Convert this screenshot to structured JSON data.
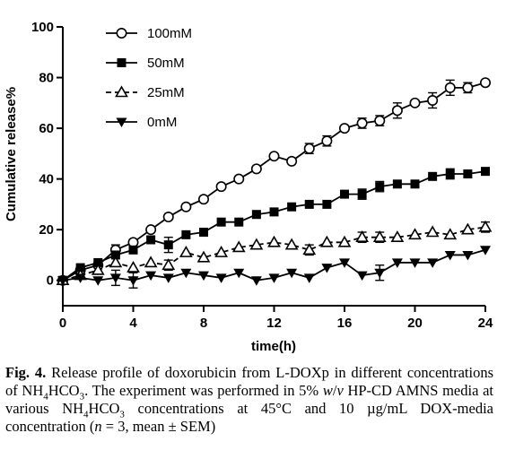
{
  "chart_data": {
    "type": "line",
    "xlabel": "time(h)",
    "ylabel": "Cumulative release%",
    "xlim": [
      0,
      24
    ],
    "ylim": [
      -10,
      100
    ],
    "xticks": [
      0,
      4,
      8,
      12,
      16,
      20,
      24
    ],
    "xtick_labels": [
      "0",
      "4",
      "8",
      "12",
      "16",
      "20",
      "24"
    ],
    "yticks": [
      0,
      20,
      40,
      60,
      80,
      100
    ],
    "ytick_labels": [
      "0",
      "20",
      "40",
      "60",
      "80",
      "100"
    ],
    "grid": false,
    "legend_position": "top-left",
    "x": [
      0,
      1,
      2,
      3,
      4,
      5,
      6,
      7,
      8,
      9,
      10,
      11,
      12,
      13,
      14,
      15,
      16,
      17,
      18,
      19,
      20,
      21,
      22,
      23,
      24
    ],
    "series": [
      {
        "name": "100mM",
        "marker": "open-circle",
        "line": "solid",
        "values": [
          0,
          4,
          6,
          12,
          15,
          20,
          25,
          29,
          32,
          37,
          40,
          44,
          49,
          47,
          52,
          55,
          60,
          62,
          63,
          67,
          70,
          71,
          76,
          76,
          78
        ],
        "error": [
          0,
          0,
          0,
          2,
          0,
          0,
          0,
          0,
          0,
          0,
          0,
          0,
          0,
          0,
          2,
          2,
          0,
          2,
          2,
          3,
          0,
          3,
          3,
          2,
          0
        ]
      },
      {
        "name": "50mM",
        "marker": "filled-square",
        "line": "solid",
        "values": [
          0,
          5,
          7,
          10,
          12,
          16,
          14,
          18,
          19,
          23,
          23,
          26,
          27,
          29,
          30,
          30,
          34,
          34,
          37,
          38,
          38,
          41,
          42,
          42,
          43
        ],
        "error": [
          0,
          0,
          0,
          0,
          0,
          0,
          3,
          0,
          0,
          0,
          0,
          0,
          0,
          0,
          0,
          0,
          0,
          2,
          2,
          0,
          0,
          0,
          2,
          0,
          0
        ]
      },
      {
        "name": "25mM",
        "marker": "open-triangle",
        "line": "dashed",
        "values": [
          0,
          2,
          4,
          7,
          5,
          7,
          6,
          11,
          9,
          11,
          13,
          14,
          15,
          14,
          12,
          15,
          15,
          17,
          17,
          17,
          18,
          19,
          18,
          20,
          21
        ],
        "error": [
          0,
          0,
          0,
          0,
          0,
          0,
          2,
          0,
          0,
          0,
          0,
          0,
          0,
          0,
          2,
          0,
          0,
          2,
          2,
          0,
          0,
          0,
          0,
          0,
          2
        ]
      },
      {
        "name": "0mM",
        "marker": "filled-inverted-triangle",
        "line": "solid",
        "values": [
          0,
          1,
          0,
          1,
          0,
          2,
          1,
          3,
          2,
          1,
          3,
          0,
          1,
          3,
          1,
          5,
          7,
          2,
          3,
          7,
          7,
          7,
          10,
          10,
          12
        ],
        "error": [
          0,
          0,
          0,
          3,
          3,
          0,
          0,
          0,
          0,
          0,
          0,
          0,
          0,
          0,
          0,
          0,
          0,
          0,
          3,
          0,
          0,
          0,
          0,
          0,
          0
        ]
      }
    ]
  },
  "caption": {
    "fig_label": "Fig. 4.",
    "line1": "Release profile of doxorubicin from L-DOXp in different",
    "line2a": "concentrations of NH",
    "line2_sub1": "4",
    "line2b": "HCO",
    "line2_sub2": "3",
    "line2c": ". The experiment was performed in 5%",
    "line3_w": "w",
    "line3_slash": "/",
    "line3_v": "v",
    "line3a": " HP-CD AMNS media at various NH",
    "line3_sub1": "4",
    "line3b": "HCO",
    "line3_sub2": "3",
    "line3c": " concentrations at",
    "line4a": "45°C and 10 µg/mL DOX-media concentration (",
    "line4_n": "n",
    "line4b": " = 3, mean ± SEM)"
  }
}
